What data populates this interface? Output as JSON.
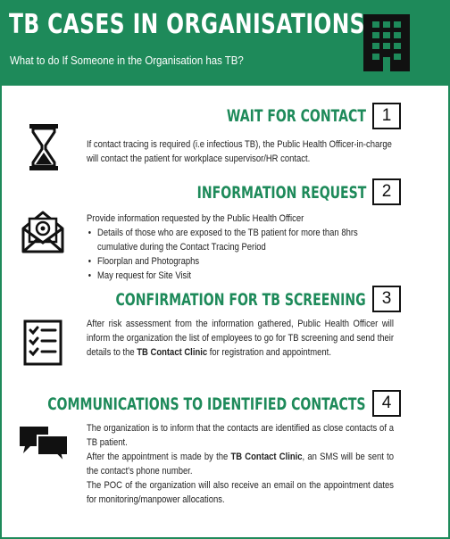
{
  "header": {
    "title": "TB CASES IN ORGANISATIONS",
    "subtitle": "What to do If Someone in the Organisation has TB?",
    "icon": "building-icon"
  },
  "sections": [
    {
      "number": "1",
      "title": "WAIT FOR CONTACT",
      "icon": "hourglass-icon",
      "text": "If contact tracing is required (i.e infectious TB), the Public Health Officer-in-charge will contact the patient for workplace supervisor/HR contact."
    },
    {
      "number": "2",
      "title": "INFORMATION REQUEST",
      "icon": "email-icon",
      "intro": "Provide information requested by the Public Health Officer",
      "bullets": [
        "Details of those who are exposed to the TB patient for more than 8hrs cumulative during the Contact Tracing Period",
        "Floorplan and Photographs",
        "May request for Site Visit"
      ]
    },
    {
      "number": "3",
      "title": "CONFIRMATION FOR TB SCREENING",
      "icon": "checklist-icon",
      "text_before": "After risk assessment from the information gathered, Public Health Officer will inform the organization the list of employees to go for TB screening and send their details to the ",
      "text_bold": "TB Contact Clinic",
      "text_after": " for registration and appointment."
    },
    {
      "number": "4",
      "title": "COMMUNICATIONS TO IDENTIFIED CONTACTS",
      "icon": "chat-bubbles-icon",
      "para1": "The organization is to inform that the contacts are identified as close contacts of a TB patient.",
      "para2_before": "After the appointment is made by the ",
      "para2_bold": "TB Contact Clinic",
      "para2_after": ", an SMS will be sent to the contact's phone number.",
      "para3": "The POC of the organization will also receive an email on the appointment dates for monitoring/manpower allocations."
    }
  ],
  "colors": {
    "brand": "#1e8a5a",
    "text": "#222222"
  }
}
